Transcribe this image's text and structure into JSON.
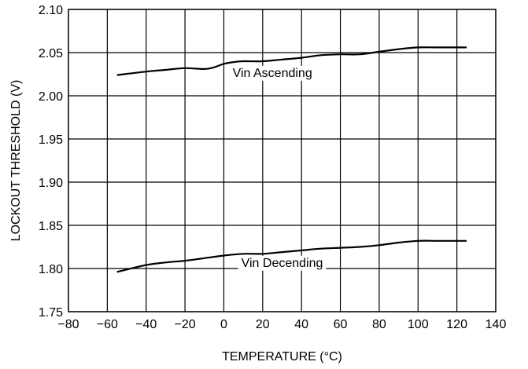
{
  "chart_data": {
    "type": "line",
    "xlabel": "TEMPERATURE (°C)",
    "ylabel": "LOCKOUT THRESHOLD (V)",
    "xlim": [
      -80,
      140
    ],
    "ylim": [
      1.75,
      2.1
    ],
    "xticks": [
      "−80",
      "−60",
      "−40",
      "−20",
      "0",
      "20",
      "40",
      "60",
      "80",
      "100",
      "120",
      "140"
    ],
    "yticks": [
      "1.75",
      "1.80",
      "1.85",
      "1.90",
      "1.95",
      "2.00",
      "2.05",
      "2.10"
    ],
    "grid": true,
    "series": [
      {
        "name": "Vin Ascending",
        "x": [
          -55,
          -40,
          -30,
          -20,
          -10,
          -5,
          0,
          5,
          10,
          20,
          30,
          40,
          50,
          60,
          70,
          80,
          90,
          100,
          110,
          125
        ],
        "y": [
          2.024,
          2.028,
          2.03,
          2.032,
          2.031,
          2.033,
          2.037,
          2.039,
          2.04,
          2.04,
          2.042,
          2.044,
          2.047,
          2.048,
          2.048,
          2.051,
          2.054,
          2.056,
          2.056,
          2.056
        ]
      },
      {
        "name": "Vin Decending",
        "x": [
          -55,
          -40,
          -30,
          -20,
          -10,
          0,
          10,
          20,
          30,
          40,
          50,
          60,
          70,
          80,
          90,
          100,
          110,
          125
        ],
        "y": [
          1.796,
          1.804,
          1.807,
          1.809,
          1.812,
          1.815,
          1.817,
          1.817,
          1.819,
          1.821,
          1.823,
          1.824,
          1.825,
          1.827,
          1.83,
          1.832,
          1.832,
          1.832
        ]
      }
    ],
    "annotations": [
      {
        "text": "Vin Ascending",
        "series": 0,
        "x": 25,
        "y": 2.022
      },
      {
        "text": "Vin Decending",
        "series": 1,
        "x": 30,
        "y": 1.802
      }
    ]
  }
}
